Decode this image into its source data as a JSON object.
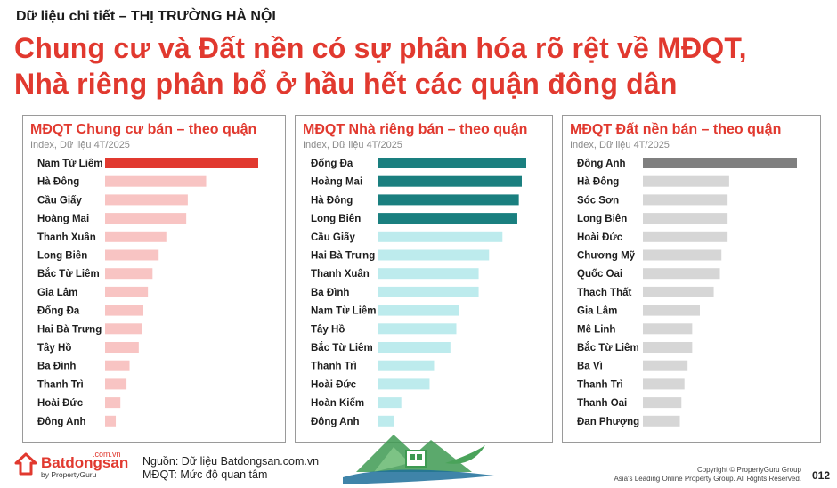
{
  "header": {
    "kicker": "Dữ liệu chi tiết – THỊ TRƯỜNG HÀ NỘI",
    "headline_line1": "Chung cư và Đất nền có sự phân hóa rõ rệt về MĐQT,",
    "headline_line2": "Nhà riêng phân bổ ở hầu hết các quận đông dân"
  },
  "panels": [
    {
      "title": "MĐQT Chung cư bán – theo quận",
      "subtitle": "Index, Dữ liệu 4T/2025",
      "highlight_color": "#e1392f",
      "light_color": "#f8c4c3"
    },
    {
      "title": "MĐQT Nhà riêng bán – theo quận",
      "subtitle": "Index, Dữ liệu 4T/2025",
      "highlight_color": "#1a7f7f",
      "light_color": "#bdebed"
    },
    {
      "title": "MĐQT Đất nền bán – theo quận",
      "subtitle": "Index, Dữ liệu 4T/2025",
      "highlight_color": "#7f7f7f",
      "light_color": "#d6d6d6"
    }
  ],
  "chart_data": [
    {
      "type": "bar",
      "orientation": "horizontal",
      "categories": [
        "Nam Từ Liêm",
        "Hà Đông",
        "Cầu Giấy",
        "Hoàng Mai",
        "Thanh Xuân",
        "Long Biên",
        "Bắc Từ Liêm",
        "Gia Lâm",
        "Đống Đa",
        "Hai Bà Trưng",
        "Tây Hồ",
        "Ba Đình",
        "Thanh Trì",
        "Hoài Đức",
        "Đông Anh"
      ],
      "values": [
        100,
        66,
        54,
        53,
        40,
        35,
        31,
        28,
        25,
        24,
        22,
        16,
        14,
        10,
        7
      ],
      "highlight_count": 1,
      "xlim": [
        0,
        100
      ]
    },
    {
      "type": "bar",
      "orientation": "horizontal",
      "categories": [
        "Đống Đa",
        "Hoàng Mai",
        "Hà Đông",
        "Long Biên",
        "Cầu Giấy",
        "Hai Bà Trưng",
        "Thanh Xuân",
        "Ba Đình",
        "Nam Từ Liêm",
        "Tây Hồ",
        "Bắc Từ Liêm",
        "Thanh Trì",
        "Hoài Đức",
        "Hoàn Kiếm",
        "Đông Anh"
      ],
      "values": [
        100,
        97,
        95,
        94,
        84,
        75,
        68,
        68,
        55,
        53,
        49,
        38,
        35,
        16,
        11
      ],
      "highlight_count": 4,
      "xlim": [
        0,
        100
      ]
    },
    {
      "type": "bar",
      "orientation": "horizontal",
      "categories": [
        "Đông Anh",
        "Hà Đông",
        "Sóc Sơn",
        "Long Biên",
        "Hoài Đức",
        "Chương Mỹ",
        "Quốc Oai",
        "Thạch Thất",
        "Gia Lâm",
        "Mê Linh",
        "Bắc Từ Liêm",
        "Ba Vì",
        "Thanh Trì",
        "Thanh Oai",
        "Đan Phượng"
      ],
      "values": [
        100,
        56,
        55,
        55,
        55,
        51,
        50,
        46,
        37,
        32,
        32,
        29,
        27,
        25,
        24
      ],
      "highlight_count": 1,
      "xlim": [
        0,
        100
      ]
    }
  ],
  "footer": {
    "brand": "Batdongsan",
    "brand_domain": ".com.vn",
    "brand_by": "by PropertyGuru",
    "source_line1": "Nguồn: Dữ liệu Batdongsan.com.vn",
    "source_line2": "MĐQT: Mức độ quan tâm",
    "copyright_line1": "Copyright © PropertyGuru Group",
    "copyright_line2": "Asia's Leading Online Property Group. All Rights Reserved.",
    "page_number": "012"
  },
  "icons": {
    "brand_logo": "batdongsan-logo-icon",
    "watermark": "house-mountain-watermark-icon"
  }
}
